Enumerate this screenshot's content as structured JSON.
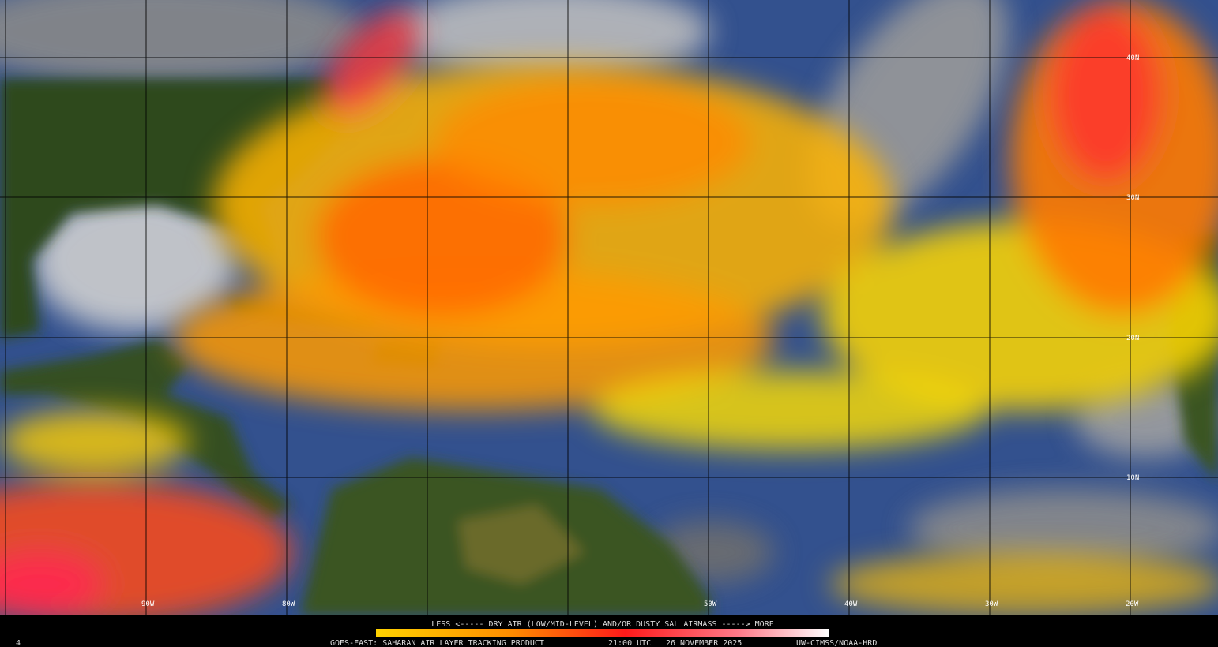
{
  "map": {
    "legend_text": "LESS <----- DRY AIR (LOW/MID-LEVEL) AND/OR DUSTY SAL AIRMASS -----> MORE",
    "footer": {
      "product": "GOES-EAST: SAHARAN AIR LAYER TRACKING PRODUCT",
      "time": "21:00 UTC",
      "date": "26 NOVEMBER 2025",
      "credit": "UW-CIMSS/NOAA-HRD"
    },
    "frame_number": "4",
    "latitude_labels": [
      "40N",
      "30N",
      "20N",
      "10N"
    ],
    "longitude_labels": [
      "90W",
      "80W",
      "50W",
      "40W",
      "30W",
      "20W"
    ]
  }
}
